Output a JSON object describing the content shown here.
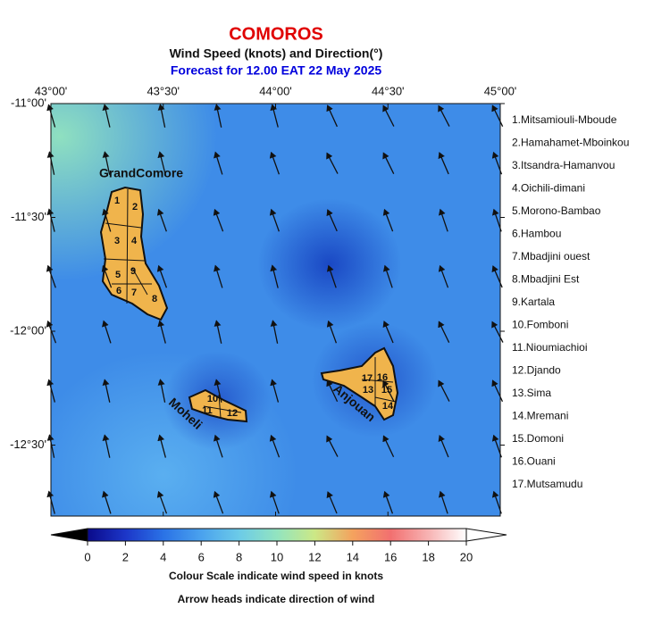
{
  "header": {
    "title": "COMOROS",
    "subtitle": "Wind Speed (knots) and Direction(°)",
    "forecast": "Forecast for  12.00 EAT 22 May 2025"
  },
  "map": {
    "lon_ticks": [
      "43°00'",
      "43°30'",
      "44°00'",
      "44°30'",
      "45°00'"
    ],
    "lat_ticks": [
      "-11°00'",
      "-11°30'",
      "-12°00'",
      "-12°30'"
    ],
    "island_labels": [
      "GrandComore",
      "Moheli",
      "Anjouan"
    ],
    "district_numbers": [
      "1",
      "2",
      "3",
      "4",
      "5",
      "6",
      "7",
      "8",
      "9",
      "10",
      "11",
      "12",
      "13",
      "14",
      "15",
      "16",
      "17"
    ]
  },
  "legend": {
    "districts": [
      "1.Mitsamiouli-Mboude",
      "2.Hamahamet-Mboinkou",
      "3.Itsandra-Hamanvou",
      "4.Oichili-dimani",
      "5.Morono-Bambao",
      "6.Hambou",
      "7.Mbadjini ouest",
      "8.Mbadjini Est",
      "9.Kartala",
      "10.Fomboni",
      "11.Nioumiachioi",
      "12.Djando",
      "13.Sima",
      "14.Mremani",
      "15.Domoni",
      "16.Ouani",
      "17.Mutsamudu"
    ]
  },
  "colorbar": {
    "ticks": [
      0,
      2,
      4,
      6,
      8,
      10,
      12,
      14,
      16,
      18,
      20
    ],
    "caption": "Colour Scale indicate wind speed in knots"
  },
  "note": "Arrow heads indicate direction of wind"
}
